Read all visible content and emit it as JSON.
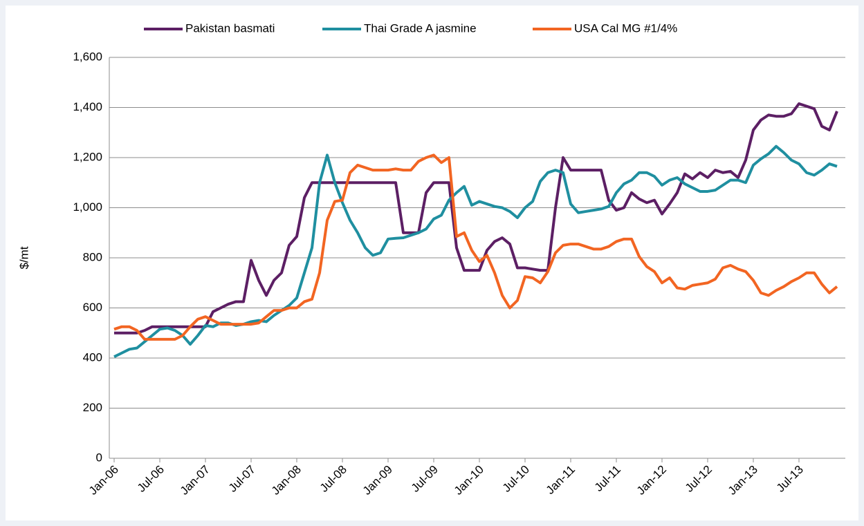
{
  "chart_data": {
    "type": "line",
    "y_label": "$/mt",
    "categories": [
      "Jan-06",
      null,
      null,
      null,
      null,
      null,
      "Jul-06",
      null,
      null,
      null,
      null,
      null,
      "Jan-07",
      null,
      null,
      null,
      null,
      null,
      "Jul-07",
      null,
      null,
      null,
      null,
      null,
      "Jan-08",
      null,
      null,
      null,
      null,
      null,
      "Jul-08",
      null,
      null,
      null,
      null,
      null,
      "Jan-09",
      null,
      null,
      null,
      null,
      null,
      "Jul-09",
      null,
      null,
      null,
      null,
      null,
      "Jan-10",
      null,
      null,
      null,
      null,
      null,
      "Jul-10",
      null,
      null,
      null,
      null,
      null,
      "Jan-11",
      null,
      null,
      null,
      null,
      null,
      "Jul-11",
      null,
      null,
      null,
      null,
      null,
      "Jan-12",
      null,
      null,
      null,
      null,
      null,
      "Jul-12",
      null,
      null,
      null,
      null,
      null,
      "Jan-13",
      null,
      null,
      null,
      null,
      null,
      "Jul-13",
      null,
      null,
      null,
      null,
      null
    ],
    "series": [
      {
        "name": "Pakistan basmati",
        "color": "#5c1f64",
        "values": [
          500,
          500,
          500,
          500,
          510,
          525,
          525,
          525,
          525,
          525,
          525,
          525,
          525,
          585,
          600,
          615,
          625,
          625,
          790,
          710,
          650,
          710,
          740,
          850,
          885,
          1040,
          1100,
          1100,
          1100,
          1100,
          1100,
          1100,
          1100,
          1100,
          1100,
          1100,
          1100,
          1100,
          900,
          900,
          900,
          1060,
          1100,
          1100,
          1100,
          840,
          750,
          750,
          750,
          830,
          865,
          880,
          855,
          760,
          760,
          755,
          750,
          750,
          1000,
          1200,
          1150,
          1150,
          1150,
          1150,
          1150,
          1030,
          990,
          1000,
          1060,
          1035,
          1020,
          1030,
          975,
          1015,
          1060,
          1135,
          1115,
          1140,
          1120,
          1150,
          1140,
          1145,
          1120,
          1190,
          1310,
          1350,
          1370,
          1365,
          1365,
          1375,
          1415,
          1405,
          1395,
          1325,
          1310,
          1385
        ]
      },
      {
        "name": "Thai Grade A jasmine",
        "color": "#1f8fa0",
        "values": [
          405,
          420,
          435,
          440,
          465,
          490,
          515,
          520,
          510,
          490,
          455,
          490,
          530,
          525,
          540,
          540,
          530,
          535,
          545,
          550,
          545,
          570,
          590,
          610,
          640,
          740,
          840,
          1100,
          1210,
          1100,
          1020,
          950,
          900,
          840,
          810,
          820,
          875,
          878,
          880,
          890,
          900,
          915,
          955,
          970,
          1030,
          1060,
          1085,
          1010,
          1025,
          1015,
          1005,
          1000,
          985,
          960,
          1000,
          1025,
          1105,
          1140,
          1150,
          1140,
          1015,
          980,
          985,
          990,
          995,
          1005,
          1060,
          1095,
          1110,
          1140,
          1140,
          1125,
          1090,
          1110,
          1120,
          1095,
          1080,
          1065,
          1065,
          1070,
          1090,
          1110,
          1110,
          1100,
          1170,
          1195,
          1215,
          1245,
          1220,
          1190,
          1175,
          1140,
          1130,
          1150,
          1175,
          1165
        ]
      },
      {
        "name": "USA Cal MG #1/4%",
        "color": "#f26522",
        "values": [
          515,
          525,
          525,
          510,
          475,
          475,
          475,
          475,
          475,
          490,
          525,
          555,
          565,
          550,
          535,
          535,
          535,
          535,
          535,
          540,
          565,
          590,
          590,
          600,
          600,
          625,
          635,
          740,
          950,
          1025,
          1030,
          1140,
          1170,
          1160,
          1150,
          1150,
          1150,
          1155,
          1150,
          1150,
          1185,
          1200,
          1210,
          1180,
          1200,
          885,
          900,
          830,
          785,
          810,
          740,
          650,
          600,
          630,
          725,
          720,
          700,
          745,
          820,
          850,
          855,
          855,
          845,
          835,
          835,
          845,
          865,
          875,
          875,
          805,
          765,
          745,
          700,
          720,
          680,
          675,
          690,
          695,
          700,
          715,
          760,
          770,
          755,
          745,
          710,
          660,
          650,
          670,
          685,
          705,
          720,
          740,
          740,
          695,
          660,
          685
        ]
      }
    ],
    "ylim": [
      0,
      1600
    ],
    "yticks": [
      0,
      200,
      400,
      600,
      800,
      {
        "value": 1000,
        "label": "1,000"
      },
      {
        "value": 1200,
        "label": "1,200"
      },
      {
        "value": 1400,
        "label": "1,400"
      },
      {
        "value": 1600,
        "label": "1,600"
      }
    ],
    "grid": true,
    "legend": "top"
  }
}
